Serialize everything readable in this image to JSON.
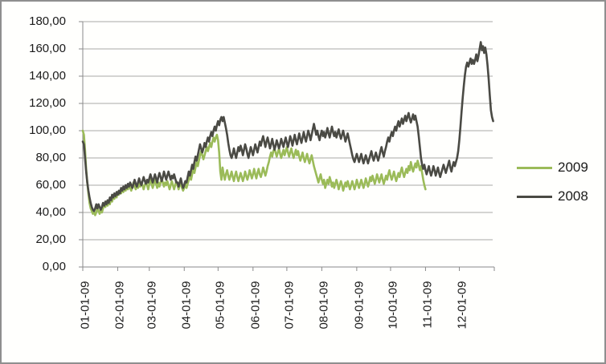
{
  "frame": {
    "background": "#fffffd",
    "border_color": "#8f8f8f"
  },
  "chart_data": {
    "type": "line",
    "title": "",
    "xlabel": "",
    "ylabel": "",
    "grid": true,
    "legend_position": "right",
    "x_axis": {
      "tick_labels": [
        "01-01-09",
        "02-01-09",
        "03-01-09",
        "04-01-09",
        "05-01-09",
        "06-01-09",
        "07-01-09",
        "08-01-09",
        "09-01-09",
        "10-01-09",
        "11-01-09",
        "12-01-09"
      ],
      "month_start_days": [
        0,
        31,
        59,
        90,
        120,
        151,
        181,
        212,
        243,
        273,
        304,
        334
      ],
      "domain_days": 365
    },
    "y_axis": {
      "tick_labels": [
        "0,00",
        "20,00",
        "40,00",
        "60,00",
        "80,00",
        "100,00",
        "120,00",
        "140,00",
        "160,00",
        "180,00"
      ],
      "min": 0,
      "max": 180,
      "step": 20
    },
    "series": [
      {
        "name": "2009",
        "color": "#9bbb59",
        "start_day": 0,
        "values": [
          100,
          97,
          86,
          72,
          62,
          54,
          47,
          43,
          41,
          39,
          41,
          38,
          40,
          44,
          41,
          39,
          42,
          40,
          43,
          46,
          44,
          48,
          45,
          49,
          46,
          50,
          48,
          52,
          50,
          53,
          51,
          55,
          53,
          56,
          54,
          57,
          55,
          58,
          56,
          59,
          57,
          60,
          58,
          56,
          59,
          62,
          59,
          57,
          60,
          58,
          61,
          59,
          62,
          60,
          57,
          60,
          63,
          60,
          57,
          61,
          64,
          61,
          58,
          61,
          64,
          61,
          58,
          62,
          59,
          62,
          65,
          62,
          59,
          62,
          60,
          63,
          60,
          57,
          60,
          63,
          60,
          57,
          60,
          63,
          60,
          57,
          60,
          62,
          58,
          56,
          58,
          61,
          58,
          61,
          64,
          67,
          64,
          68,
          72,
          69,
          73,
          77,
          74,
          78,
          82,
          85,
          82,
          79,
          82,
          85,
          88,
          85,
          88,
          91,
          88,
          92,
          95,
          92,
          95,
          97,
          93,
          84,
          70,
          64,
          73,
          68,
          64,
          68,
          71,
          67,
          64,
          67,
          70,
          66,
          63,
          67,
          70,
          66,
          63,
          66,
          69,
          66,
          63,
          66,
          70,
          67,
          64,
          67,
          71,
          68,
          65,
          68,
          72,
          68,
          65,
          69,
          72,
          68,
          66,
          69,
          73,
          70,
          67,
          70,
          74,
          77,
          81,
          84,
          81,
          85,
          87,
          84,
          81,
          84,
          87,
          83,
          80,
          83,
          86,
          82,
          85,
          88,
          84,
          81,
          84,
          87,
          83,
          80,
          83,
          86,
          82,
          85,
          81,
          78,
          81,
          84,
          80,
          77,
          80,
          83,
          79,
          76,
          79,
          82,
          78,
          74,
          71,
          68,
          65,
          62,
          65,
          68,
          64,
          61,
          64,
          58,
          61,
          64,
          61,
          66,
          63,
          59,
          62,
          58,
          61,
          64,
          61,
          57,
          60,
          63,
          60,
          56,
          59,
          62,
          59,
          63,
          60,
          57,
          60,
          63,
          60,
          57,
          60,
          64,
          61,
          58,
          61,
          64,
          61,
          58,
          61,
          65,
          62,
          59,
          62,
          66,
          63,
          67,
          64,
          61,
          64,
          68,
          65,
          62,
          65,
          68,
          64,
          61,
          64,
          67,
          64,
          68,
          71,
          67,
          64,
          67,
          70,
          66,
          63,
          66,
          69,
          66,
          70,
          73,
          69,
          66,
          69,
          72,
          69,
          74,
          71,
          77,
          73,
          70,
          73,
          76,
          73,
          78,
          75,
          71,
          74,
          69,
          64,
          60,
          57
        ]
      },
      {
        "name": "2008",
        "color": "#4a4a44",
        "start_day": 0,
        "values": [
          92,
          90,
          80,
          70,
          62,
          56,
          51,
          47,
          44,
          42,
          41,
          43,
          46,
          43,
          46,
          44,
          42,
          44,
          47,
          45,
          48,
          46,
          49,
          47,
          51,
          49,
          53,
          51,
          54,
          52,
          55,
          53,
          56,
          54,
          58,
          56,
          59,
          57,
          60,
          58,
          61,
          59,
          62,
          60,
          58,
          61,
          64,
          61,
          59,
          62,
          65,
          62,
          60,
          63,
          66,
          63,
          61,
          64,
          62,
          65,
          68,
          65,
          62,
          65,
          68,
          65,
          62,
          66,
          69,
          66,
          63,
          66,
          70,
          67,
          64,
          67,
          70,
          67,
          64,
          67,
          65,
          68,
          65,
          62,
          62,
          59,
          62,
          65,
          61,
          58,
          60,
          63,
          62,
          66,
          70,
          67,
          71,
          75,
          72,
          77,
          81,
          78,
          82,
          86,
          90,
          87,
          84,
          87,
          91,
          88,
          92,
          95,
          92,
          96,
          99,
          96,
          100,
          103,
          100,
          104,
          107,
          104,
          108,
          110,
          107,
          110,
          106,
          102,
          97,
          91,
          86,
          82,
          80,
          83,
          87,
          83,
          80,
          84,
          88,
          85,
          89,
          86,
          82,
          86,
          90,
          87,
          83,
          80,
          84,
          88,
          85,
          82,
          86,
          90,
          87,
          84,
          88,
          92,
          89,
          93,
          96,
          92,
          88,
          92,
          95,
          91,
          87,
          90,
          94,
          90,
          86,
          89,
          93,
          90,
          87,
          90,
          94,
          91,
          88,
          92,
          95,
          91,
          88,
          92,
          96,
          93,
          89,
          93,
          97,
          93,
          90,
          94,
          98,
          94,
          91,
          95,
          99,
          95,
          92,
          96,
          100,
          97,
          93,
          97,
          101,
          105,
          101,
          97,
          100,
          96,
          93,
          97,
          100,
          96,
          99,
          95,
          98,
          102,
          98,
          95,
          99,
          103,
          99,
          96,
          99,
          95,
          98,
          101,
          97,
          94,
          97,
          100,
          96,
          92,
          95,
          98,
          94,
          90,
          86,
          82,
          79,
          77,
          80,
          83,
          80,
          77,
          80,
          83,
          79,
          76,
          79,
          82,
          79,
          76,
          79,
          82,
          85,
          81,
          78,
          81,
          84,
          81,
          78,
          81,
          85,
          88,
          84,
          81,
          85,
          88,
          92,
          95,
          92,
          96,
          99,
          96,
          100,
          103,
          100,
          104,
          107,
          103,
          106,
          109,
          105,
          108,
          111,
          107,
          110,
          113,
          109,
          106,
          109,
          112,
          108,
          111,
          107,
          103,
          96,
          88,
          80,
          75,
          72,
          75,
          71,
          68,
          71,
          74,
          70,
          67,
          70,
          74,
          71,
          67,
          70,
          73,
          69,
          66,
          69,
          72,
          75,
          72,
          69,
          72,
          75,
          78,
          73,
          70,
          74,
          77,
          74,
          77,
          80,
          85,
          93,
          103,
          114,
          124,
          133,
          141,
          147,
          150,
          147,
          150,
          153,
          149,
          152,
          149,
          152,
          156,
          151,
          155,
          160,
          165,
          159,
          162,
          157,
          161,
          156,
          148,
          138,
          126,
          115,
          110,
          107
        ]
      }
    ]
  }
}
